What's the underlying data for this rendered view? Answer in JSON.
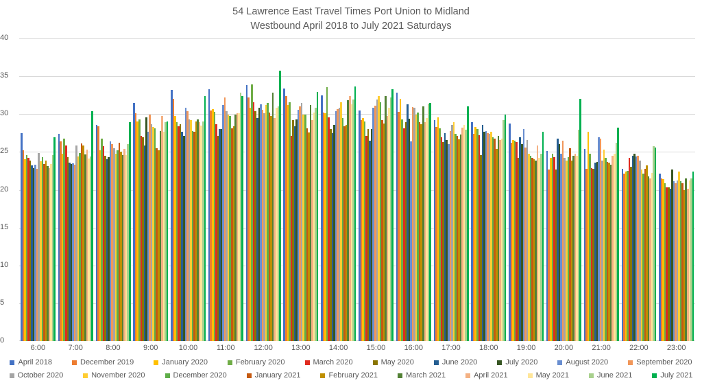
{
  "title": {
    "line1": "54 Lawrence East Travel Times Port Union to Midland",
    "line2": "Westbound April 2018 to July 2021 Saturdays"
  },
  "colors": {
    "text_gray": "#595959",
    "gridline": "#d9d9d9",
    "background": "#ffffff"
  },
  "chart_data": {
    "type": "bar",
    "title": "54 Lawrence East Travel Times Port Union to Midland Westbound April 2018 to July 2021 Saturdays",
    "ylim": [
      0,
      40
    ],
    "yticks": [
      0,
      5,
      10,
      15,
      20,
      25,
      30,
      35,
      40
    ],
    "grid": true,
    "legend_position": "bottom",
    "legend_rows": [
      [
        "April 2018",
        "December 2019",
        "January 2020",
        "February 2020",
        "March 2020",
        "May 2020",
        "June 2020",
        "July 2020",
        "August 2020",
        "September 2020"
      ],
      [
        "October 2020",
        "November 2020",
        "December 2020",
        "January 2021",
        "February 2021",
        "March 2021",
        "April 2021",
        "May 2021",
        "June 2021",
        "July 2021"
      ]
    ],
    "categories": [
      "6:00",
      "7:00",
      "8:00",
      "9:00",
      "10:00",
      "11:00",
      "12:00",
      "13:00",
      "14:00",
      "15:00",
      "16:00",
      "17:00",
      "18:00",
      "19:00",
      "20:00",
      "21:00",
      "22:00",
      "23:00"
    ],
    "series": [
      {
        "name": "April 2018",
        "color": "#4472C4",
        "values": [
          27.5,
          27.4,
          28.6,
          31.5,
          33.2,
          33.3,
          33.8,
          33.4,
          32.5,
          30.5,
          32.8,
          29.2,
          28.9,
          28.8,
          25.1,
          25.4,
          22.8,
          22.1
        ]
      },
      {
        "name": "December 2019",
        "color": "#ED7D31",
        "values": [
          25.2,
          26.4,
          28.4,
          30.1,
          32.0,
          30.5,
          32.2,
          32.4,
          30.2,
          29.2,
          30.3,
          28.3,
          27.4,
          26.2,
          22.7,
          22.8,
          22.1,
          21.5
        ]
      },
      {
        "name": "January 2020",
        "color": "#FFC000",
        "values": [
          24.0,
          24.8,
          25.2,
          29.0,
          29.8,
          30.7,
          30.8,
          31.2,
          30.1,
          29.5,
          32.0,
          29.6,
          28.3,
          26.6,
          24.2,
          27.7,
          22.4,
          21.4
        ]
      },
      {
        "name": "February 2020",
        "color": "#70AD47",
        "values": [
          24.6,
          26.8,
          26.8,
          29.3,
          28.9,
          30.3,
          33.9,
          31.6,
          33.6,
          29.0,
          29.3,
          28.1,
          28.0,
          26.5,
          24.8,
          24.8,
          22.5,
          20.9
        ]
      },
      {
        "name": "March 2020",
        "color": "#E02B20",
        "values": [
          24.2,
          25.9,
          25.8,
          27.1,
          28.4,
          28.7,
          31.6,
          27.1,
          29.6,
          27.1,
          28.1,
          26.9,
          27.2,
          26.3,
          24.3,
          22.9,
          24.2,
          20.3
        ]
      },
      {
        "name": "May 2020",
        "color": "#8A7500",
        "values": [
          23.9,
          24.3,
          24.5,
          26.9,
          28.7,
          27.1,
          30.4,
          29.2,
          28.0,
          28.0,
          28.9,
          26.3,
          24.6,
          24.2,
          22.7,
          22.8,
          23.0,
          20.3
        ]
      },
      {
        "name": "June 2020",
        "color": "#255E91",
        "values": [
          23.2,
          23.6,
          24.0,
          25.9,
          27.7,
          28.0,
          29.5,
          28.4,
          27.5,
          26.5,
          31.3,
          27.5,
          28.6,
          26.9,
          26.8,
          23.6,
          24.5,
          20.1
        ]
      },
      {
        "name": "July 2020",
        "color": "#375623",
        "values": [
          22.9,
          23.4,
          24.3,
          29.6,
          27.1,
          28.0,
          30.8,
          29.3,
          28.6,
          28.0,
          29.4,
          26.6,
          27.7,
          26.0,
          26.0,
          23.7,
          24.8,
          22.7
        ]
      },
      {
        "name": "August 2020",
        "color": "#698ED0",
        "values": [
          23.3,
          23.5,
          26.4,
          27.7,
          30.8,
          31.2,
          31.3,
          30.6,
          30.4,
          30.8,
          26.4,
          26.0,
          27.8,
          28.0,
          24.8,
          26.9,
          24.4,
          21.1
        ]
      },
      {
        "name": "September 2020",
        "color": "#F1975A",
        "values": [
          22.8,
          23.3,
          26.0,
          29.9,
          30.4,
          32.2,
          30.6,
          31.0,
          30.7,
          31.1,
          30.9,
          27.8,
          27.5,
          25.6,
          26.5,
          26.8,
          24.5,
          20.9
        ]
      },
      {
        "name": "October 2020",
        "color": "#A5A5A5",
        "values": [
          24.9,
          25.9,
          25.5,
          28.7,
          29.3,
          30.4,
          30.1,
          31.5,
          30.8,
          31.9,
          30.8,
          28.6,
          27.4,
          26.6,
          24.2,
          23.9,
          23.9,
          21.2
        ]
      },
      {
        "name": "November 2020",
        "color": "#FFCD33",
        "values": [
          23.8,
          24.4,
          24.8,
          28.3,
          29.2,
          29.9,
          31.2,
          29.9,
          31.6,
          32.4,
          29.9,
          28.9,
          27.7,
          24.8,
          23.9,
          25.3,
          22.7,
          22.4
        ]
      },
      {
        "name": "December 2020",
        "color": "#5FAE49",
        "values": [
          24.3,
          24.9,
          25.2,
          28.1,
          27.8,
          29.8,
          31.5,
          29.9,
          29.5,
          31.6,
          30.2,
          27.4,
          26.9,
          24.5,
          24.3,
          24.2,
          22.1,
          21.1
        ]
      },
      {
        "name": "January 2021",
        "color": "#C55A11",
        "values": [
          23.4,
          26.1,
          26.2,
          25.5,
          27.7,
          28.1,
          30.2,
          28.1,
          28.4,
          29.2,
          28.9,
          27.1,
          26.8,
          24.2,
          25.5,
          23.7,
          22.8,
          20.9
        ]
      },
      {
        "name": "February 2021",
        "color": "#BF8F00",
        "values": [
          23.9,
          25.9,
          25.0,
          25.2,
          29.0,
          28.4,
          29.8,
          27.6,
          28.6,
          28.8,
          28.7,
          26.7,
          25.4,
          24.0,
          23.9,
          23.6,
          23.2,
          20.0
        ]
      },
      {
        "name": "March 2021",
        "color": "#538135",
        "values": [
          23.1,
          24.7,
          24.6,
          27.8,
          29.3,
          29.9,
          32.8,
          31.2,
          31.8,
          32.4,
          31.0,
          27.3,
          27.1,
          23.9,
          24.5,
          23.3,
          21.8,
          21.5
        ]
      },
      {
        "name": "April 2021",
        "color": "#F4B183",
        "values": [
          22.9,
          25.3,
          25.4,
          29.8,
          28.9,
          30.1,
          29.5,
          29.2,
          32.4,
          29.8,
          28.9,
          28.2,
          26.6,
          25.9,
          24.8,
          24.5,
          21.5,
          20.1
        ]
      },
      {
        "name": "May 2021",
        "color": "#FFE699",
        "values": [
          23.4,
          24.1,
          24.6,
          27.7,
          28.5,
          30.1,
          30.8,
          30.2,
          31.3,
          30.8,
          29.5,
          28.6,
          26.8,
          24.2,
          24.5,
          24.8,
          22.2,
          21.2
        ]
      },
      {
        "name": "June 2021",
        "color": "#A9D18E",
        "values": [
          24.6,
          24.4,
          26.0,
          28.9,
          29.0,
          32.8,
          31.0,
          30.8,
          31.9,
          32.2,
          31.4,
          27.9,
          29.2,
          24.8,
          27.9,
          26.2,
          25.8,
          21.5
        ]
      },
      {
        "name": "July 2021",
        "color": "#00B050",
        "values": [
          26.9,
          30.4,
          28.9,
          29.0,
          32.4,
          32.4,
          35.7,
          32.9,
          33.7,
          33.3,
          31.5,
          31.0,
          29.9,
          27.7,
          32.0,
          28.2,
          25.6,
          22.4
        ]
      }
    ]
  }
}
